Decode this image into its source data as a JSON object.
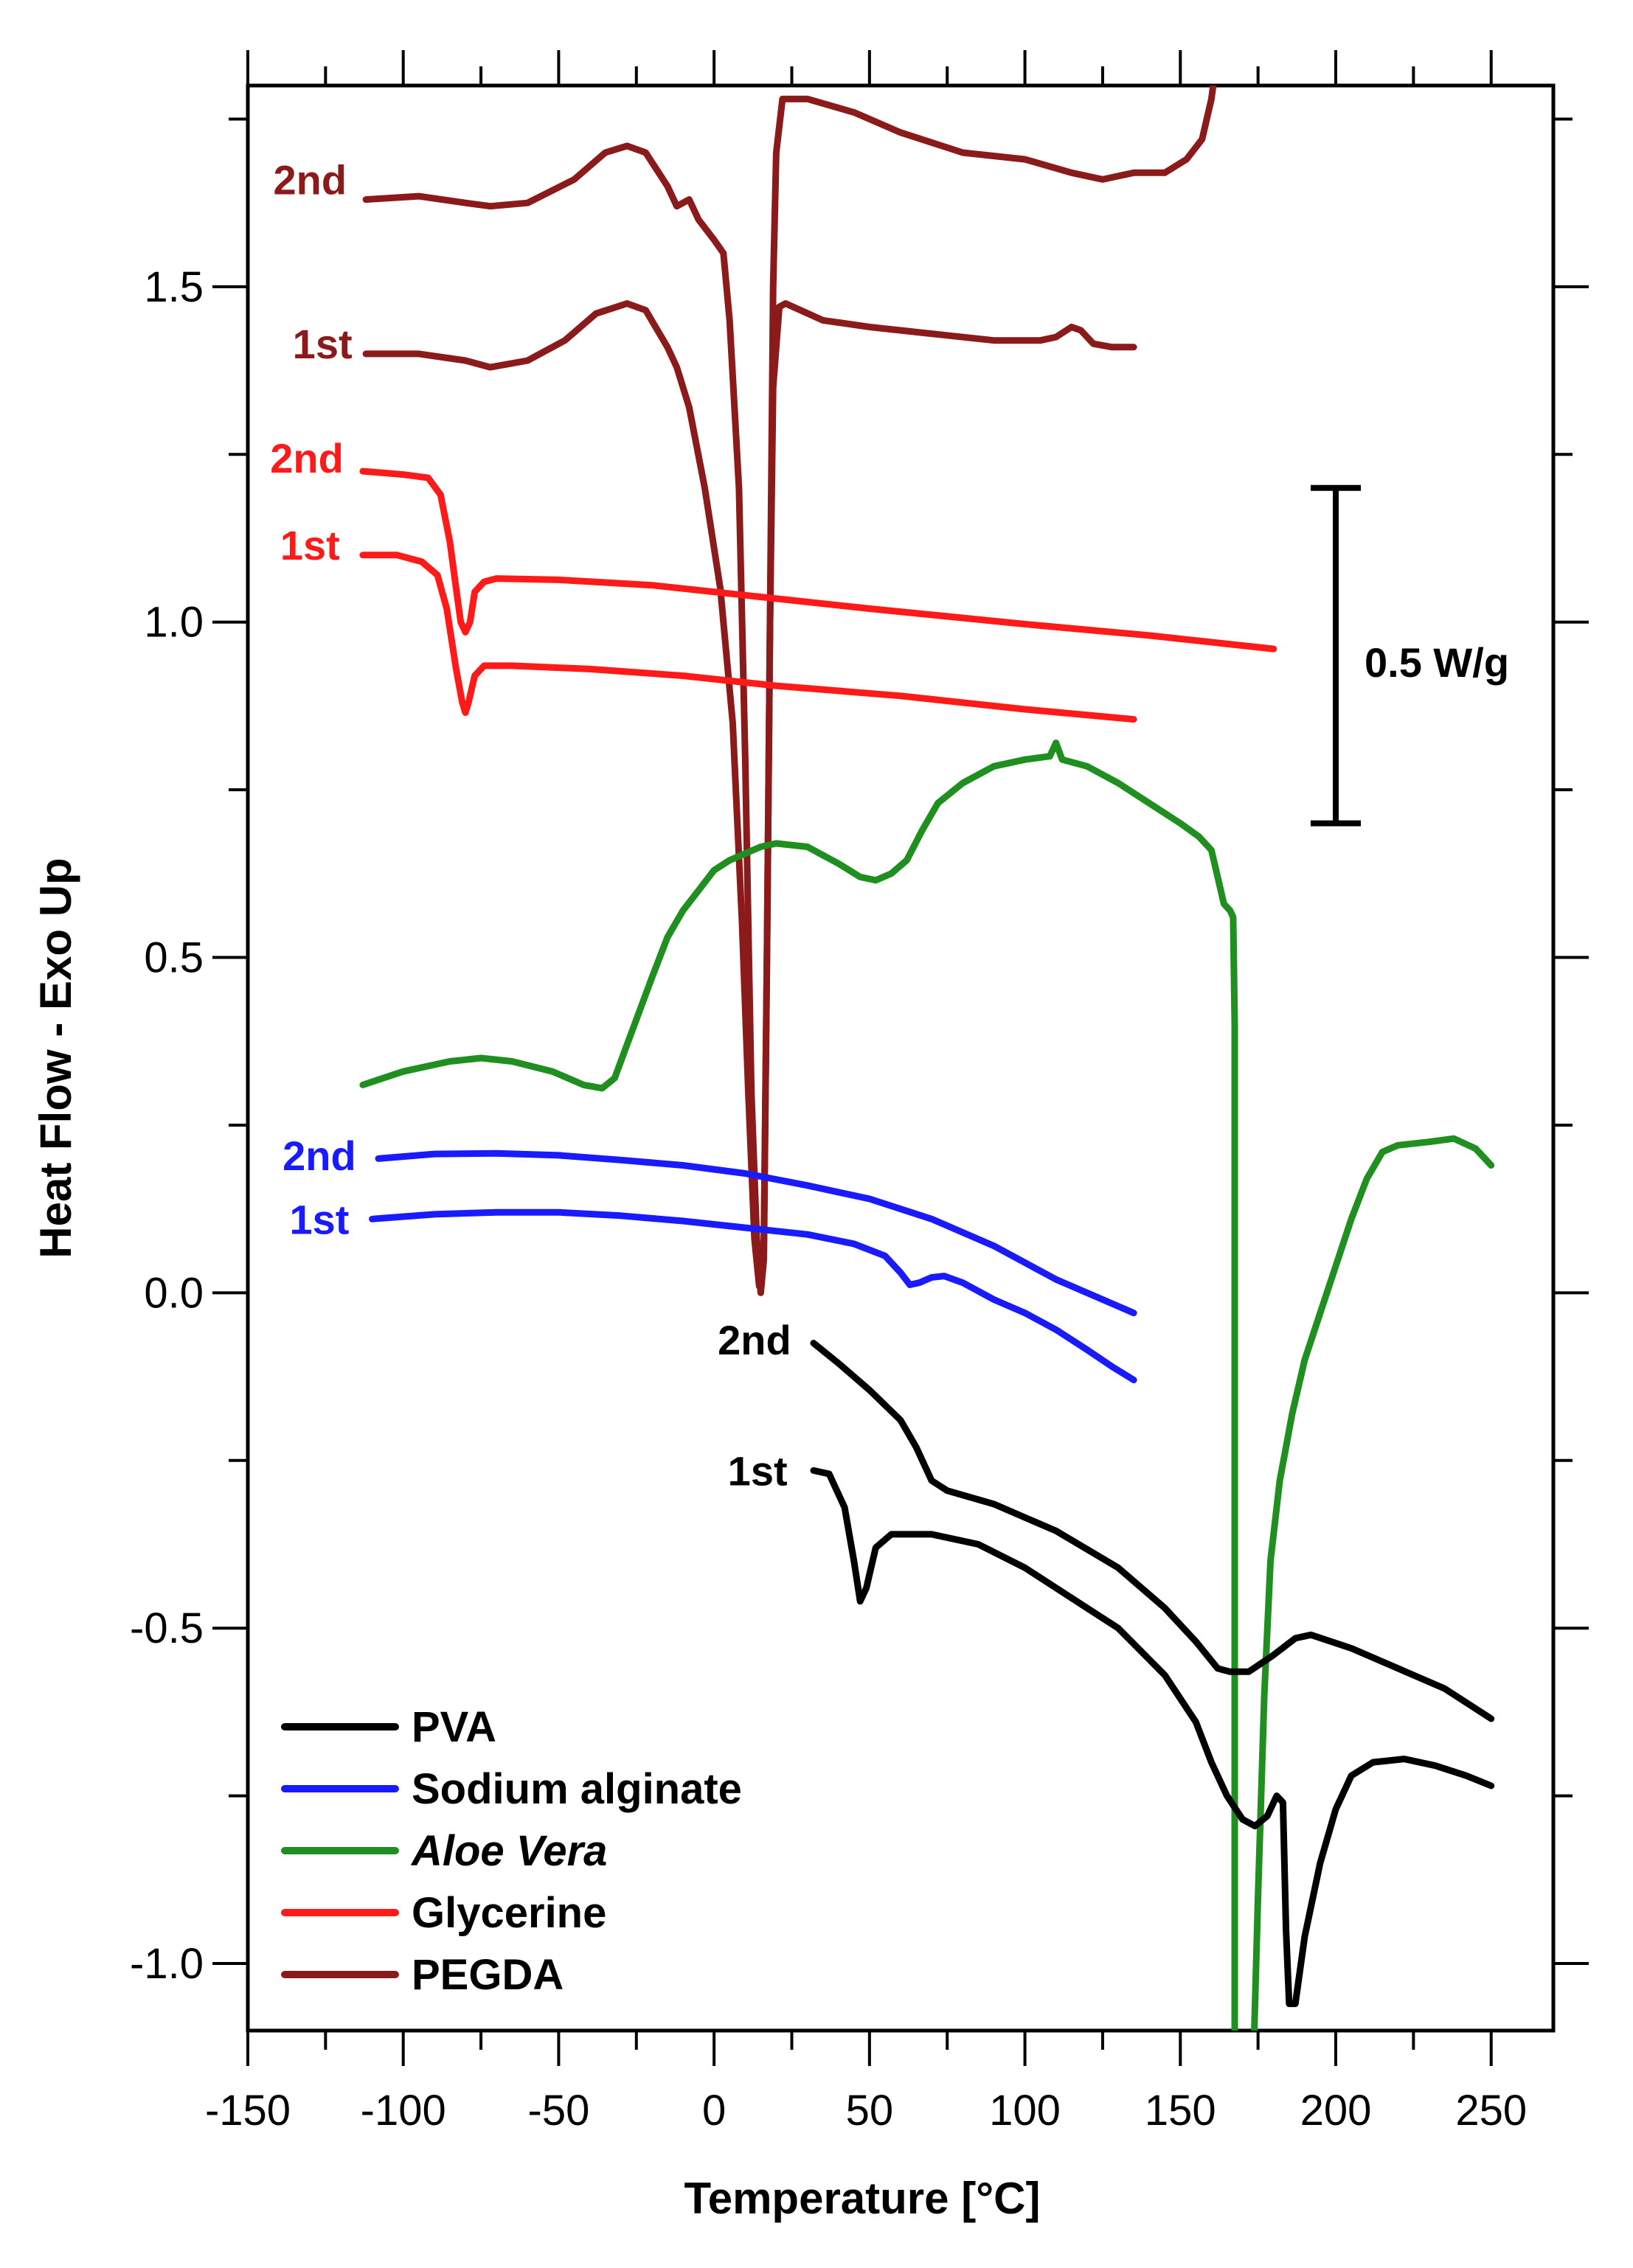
{
  "chart_data": {
    "type": "line",
    "title": "",
    "xlabel": "Temperature [°C]",
    "ylabel": "Heat Flow - Exo Up",
    "xlim": [
      -150,
      270
    ],
    "ylim": [
      -1.1,
      1.8
    ],
    "xticks": [
      -150,
      -100,
      -50,
      0,
      50,
      100,
      150,
      200,
      250
    ],
    "xtick_labels": [
      "-150",
      "-100",
      "-50",
      "0",
      "50",
      "100",
      "150",
      "200",
      "250"
    ],
    "yticks": [
      -1.0,
      -0.5,
      0.0,
      0.5,
      1.0,
      1.5
    ],
    "ytick_labels": [
      "-1.0",
      "-0.5",
      "0.0",
      "0.5",
      "1.0",
      "1.5"
    ],
    "grid": false,
    "legend_position": "bottom-left",
    "legend": [
      {
        "name": "PVA",
        "color": "#000000",
        "italic": false
      },
      {
        "name": "Sodium alginate",
        "color": "#1a1aff",
        "italic": false
      },
      {
        "name": "Aloe Vera",
        "color": "#1f8f1f",
        "italic": true
      },
      {
        "name": "Glycerine",
        "color": "#ff1a1a",
        "italic": false
      },
      {
        "name": "PEGDA",
        "color": "#8b1a1a",
        "italic": false
      }
    ],
    "scale_bar": {
      "label": "0.5 W/g",
      "y_from": 0.7,
      "y_to": 1.2,
      "x": 200
    },
    "series": [
      {
        "name": "PEGDA 2nd",
        "label": "2nd",
        "label_x": -130,
        "label_y": 1.66,
        "color": "#8b1a1a",
        "points": [
          [
            -112,
            1.63
          ],
          [
            -95,
            1.635
          ],
          [
            -80,
            1.625
          ],
          [
            -72,
            1.62
          ],
          [
            -60,
            1.625
          ],
          [
            -45,
            1.66
          ],
          [
            -35,
            1.7
          ],
          [
            -28,
            1.71
          ],
          [
            -22,
            1.7
          ],
          [
            -15,
            1.65
          ],
          [
            -12,
            1.62
          ],
          [
            -8,
            1.63
          ],
          [
            -5,
            1.6
          ],
          [
            0,
            1.57
          ],
          [
            3,
            1.55
          ],
          [
            5,
            1.45
          ],
          [
            8,
            1.2
          ],
          [
            10,
            0.8
          ],
          [
            12,
            0.3
          ],
          [
            14,
            0.05
          ],
          [
            15,
            0.0
          ],
          [
            16,
            0.05
          ],
          [
            17,
            0.5
          ],
          [
            18,
            1.0
          ],
          [
            19,
            1.5
          ],
          [
            20,
            1.7
          ],
          [
            22,
            1.78
          ],
          [
            30,
            1.78
          ],
          [
            45,
            1.76
          ],
          [
            60,
            1.73
          ],
          [
            80,
            1.7
          ],
          [
            100,
            1.69
          ],
          [
            115,
            1.67
          ],
          [
            125,
            1.66
          ],
          [
            135,
            1.67
          ],
          [
            145,
            1.67
          ],
          [
            152,
            1.69
          ],
          [
            157,
            1.72
          ],
          [
            160,
            1.78
          ],
          [
            162,
            1.85
          ]
        ]
      },
      {
        "name": "PEGDA 1st",
        "label": "1st",
        "label_x": -126,
        "label_y": 1.415,
        "color": "#8b1a1a",
        "points": [
          [
            -112,
            1.4
          ],
          [
            -95,
            1.4
          ],
          [
            -80,
            1.39
          ],
          [
            -72,
            1.38
          ],
          [
            -60,
            1.39
          ],
          [
            -48,
            1.42
          ],
          [
            -38,
            1.46
          ],
          [
            -28,
            1.475
          ],
          [
            -22,
            1.465
          ],
          [
            -15,
            1.41
          ],
          [
            -12,
            1.38
          ],
          [
            -8,
            1.32
          ],
          [
            -3,
            1.2
          ],
          [
            2,
            1.05
          ],
          [
            6,
            0.85
          ],
          [
            9,
            0.55
          ],
          [
            11,
            0.3
          ],
          [
            13,
            0.08
          ],
          [
            14.5,
            0.01
          ],
          [
            16,
            0.08
          ],
          [
            17,
            0.5
          ],
          [
            18,
            1.0
          ],
          [
            19,
            1.35
          ],
          [
            21,
            1.47
          ],
          [
            23,
            1.475
          ],
          [
            35,
            1.45
          ],
          [
            50,
            1.44
          ],
          [
            70,
            1.43
          ],
          [
            90,
            1.42
          ],
          [
            105,
            1.42
          ],
          [
            110,
            1.425
          ],
          [
            115,
            1.44
          ],
          [
            118,
            1.435
          ],
          [
            122,
            1.415
          ],
          [
            128,
            1.41
          ],
          [
            135,
            1.41
          ]
        ]
      },
      {
        "name": "Glycerine 2nd",
        "label": "2nd",
        "label_x": -131,
        "label_y": 1.245,
        "color": "#ff1a1a",
        "points": [
          [
            -113,
            1.225
          ],
          [
            -100,
            1.22
          ],
          [
            -92,
            1.215
          ],
          [
            -88,
            1.19
          ],
          [
            -85,
            1.12
          ],
          [
            -83,
            1.05
          ],
          [
            -81.5,
            1.0
          ],
          [
            -80,
            0.985
          ],
          [
            -78.5,
            1.0
          ],
          [
            -77,
            1.045
          ],
          [
            -74,
            1.06
          ],
          [
            -70,
            1.065
          ],
          [
            -50,
            1.063
          ],
          [
            -20,
            1.055
          ],
          [
            10,
            1.04
          ],
          [
            50,
            1.02
          ],
          [
            100,
            0.997
          ],
          [
            140,
            0.98
          ],
          [
            180,
            0.96
          ]
        ]
      },
      {
        "name": "Glycerine 1st",
        "label": "1st",
        "label_x": -130,
        "label_y": 1.115,
        "color": "#ff1a1a",
        "points": [
          [
            -113,
            1.1
          ],
          [
            -102,
            1.1
          ],
          [
            -94,
            1.09
          ],
          [
            -89,
            1.07
          ],
          [
            -86,
            1.02
          ],
          [
            -83,
            0.93
          ],
          [
            -81,
            0.88
          ],
          [
            -80,
            0.865
          ],
          [
            -79,
            0.88
          ],
          [
            -77,
            0.92
          ],
          [
            -74,
            0.935
          ],
          [
            -65,
            0.935
          ],
          [
            -40,
            0.93
          ],
          [
            -10,
            0.92
          ],
          [
            20,
            0.905
          ],
          [
            60,
            0.89
          ],
          [
            100,
            0.87
          ],
          [
            135,
            0.855
          ]
        ]
      },
      {
        "name": "Aloe Vera",
        "label": "",
        "label_x": 0,
        "label_y": 0,
        "color": "#1f8f1f",
        "points": [
          [
            -113,
            0.31
          ],
          [
            -100,
            0.33
          ],
          [
            -85,
            0.345
          ],
          [
            -75,
            0.35
          ],
          [
            -65,
            0.345
          ],
          [
            -52,
            0.33
          ],
          [
            -42,
            0.31
          ],
          [
            -36,
            0.305
          ],
          [
            -32,
            0.32
          ],
          [
            -28,
            0.37
          ],
          [
            -24,
            0.42
          ],
          [
            -20,
            0.47
          ],
          [
            -15,
            0.53
          ],
          [
            -10,
            0.57
          ],
          [
            -5,
            0.6
          ],
          [
            0,
            0.63
          ],
          [
            5,
            0.645
          ],
          [
            10,
            0.655
          ],
          [
            15,
            0.665
          ],
          [
            20,
            0.67
          ],
          [
            30,
            0.665
          ],
          [
            40,
            0.64
          ],
          [
            47,
            0.62
          ],
          [
            52,
            0.615
          ],
          [
            57,
            0.625
          ],
          [
            62,
            0.645
          ],
          [
            67,
            0.69
          ],
          [
            72,
            0.73
          ],
          [
            80,
            0.76
          ],
          [
            90,
            0.785
          ],
          [
            100,
            0.795
          ],
          [
            108,
            0.8
          ],
          [
            110,
            0.82
          ],
          [
            112,
            0.795
          ],
          [
            120,
            0.785
          ],
          [
            130,
            0.76
          ],
          [
            140,
            0.73
          ],
          [
            150,
            0.7
          ],
          [
            156,
            0.68
          ],
          [
            160,
            0.66
          ],
          [
            162,
            0.62
          ],
          [
            164,
            0.58
          ],
          [
            166,
            0.57
          ],
          [
            167,
            0.56
          ],
          [
            167.5,
            0.4
          ],
          [
            167.5,
            -1.15
          ]
        ]
      },
      {
        "name": "Aloe Vera tail",
        "label": "",
        "label_x": 0,
        "label_y": 0,
        "color": "#1f8f1f",
        "points": [
          [
            173.5,
            -1.15
          ],
          [
            175,
            -0.9
          ],
          [
            177,
            -0.6
          ],
          [
            179,
            -0.4
          ],
          [
            182,
            -0.28
          ],
          [
            186,
            -0.18
          ],
          [
            190,
            -0.1
          ],
          [
            195,
            -0.03
          ],
          [
            200,
            0.04
          ],
          [
            205,
            0.11
          ],
          [
            210,
            0.17
          ],
          [
            215,
            0.21
          ],
          [
            220,
            0.22
          ],
          [
            230,
            0.225
          ],
          [
            238,
            0.23
          ],
          [
            245,
            0.215
          ],
          [
            250,
            0.19
          ]
        ]
      },
      {
        "name": "Sodium alginate 2nd",
        "label": "2nd",
        "label_x": -127,
        "label_y": 0.205,
        "color": "#1a1aff",
        "points": [
          [
            -108,
            0.2
          ],
          [
            -90,
            0.207
          ],
          [
            -70,
            0.208
          ],
          [
            -50,
            0.205
          ],
          [
            -30,
            0.198
          ],
          [
            -10,
            0.19
          ],
          [
            10,
            0.178
          ],
          [
            30,
            0.16
          ],
          [
            50,
            0.14
          ],
          [
            70,
            0.11
          ],
          [
            90,
            0.07
          ],
          [
            110,
            0.02
          ],
          [
            125,
            -0.01
          ],
          [
            135,
            -0.03
          ]
        ]
      },
      {
        "name": "Sodium alginate 1st",
        "label": "1st",
        "label_x": -127,
        "label_y": 0.11,
        "color": "#1a1aff",
        "points": [
          [
            -110,
            0.11
          ],
          [
            -90,
            0.117
          ],
          [
            -70,
            0.12
          ],
          [
            -50,
            0.12
          ],
          [
            -30,
            0.115
          ],
          [
            -10,
            0.107
          ],
          [
            10,
            0.097
          ],
          [
            30,
            0.087
          ],
          [
            45,
            0.073
          ],
          [
            55,
            0.055
          ],
          [
            60,
            0.03
          ],
          [
            63,
            0.012
          ],
          [
            66,
            0.015
          ],
          [
            70,
            0.023
          ],
          [
            74,
            0.025
          ],
          [
            80,
            0.015
          ],
          [
            90,
            -0.01
          ],
          [
            100,
            -0.03
          ],
          [
            110,
            -0.055
          ],
          [
            120,
            -0.085
          ],
          [
            128,
            -0.11
          ],
          [
            135,
            -0.13
          ]
        ]
      },
      {
        "name": "PVA 2nd",
        "label": "2nd",
        "label_x": 13,
        "label_y": -0.07,
        "color": "#000000",
        "points": [
          [
            32,
            -0.075
          ],
          [
            40,
            -0.105
          ],
          [
            50,
            -0.145
          ],
          [
            60,
            -0.19
          ],
          [
            65,
            -0.23
          ],
          [
            70,
            -0.28
          ],
          [
            75,
            -0.295
          ],
          [
            90,
            -0.315
          ],
          [
            110,
            -0.355
          ],
          [
            130,
            -0.41
          ],
          [
            145,
            -0.47
          ],
          [
            155,
            -0.52
          ],
          [
            162,
            -0.56
          ],
          [
            166,
            -0.565
          ],
          [
            172,
            -0.565
          ],
          [
            180,
            -0.54
          ],
          [
            187,
            -0.515
          ],
          [
            192,
            -0.51
          ],
          [
            205,
            -0.53
          ],
          [
            220,
            -0.56
          ],
          [
            235,
            -0.59
          ],
          [
            250,
            -0.635
          ]
        ]
      },
      {
        "name": "PVA 1st",
        "label": "1st",
        "label_x": 14,
        "label_y": -0.265,
        "color": "#000000",
        "points": [
          [
            32,
            -0.265
          ],
          [
            37,
            -0.27
          ],
          [
            42,
            -0.32
          ],
          [
            45,
            -0.4
          ],
          [
            47,
            -0.46
          ],
          [
            49,
            -0.44
          ],
          [
            52,
            -0.38
          ],
          [
            57,
            -0.36
          ],
          [
            70,
            -0.36
          ],
          [
            85,
            -0.375
          ],
          [
            100,
            -0.41
          ],
          [
            115,
            -0.455
          ],
          [
            130,
            -0.5
          ],
          [
            145,
            -0.57
          ],
          [
            155,
            -0.64
          ],
          [
            160,
            -0.7
          ],
          [
            165,
            -0.75
          ],
          [
            170,
            -0.785
          ],
          [
            174,
            -0.795
          ],
          [
            178,
            -0.78
          ],
          [
            181,
            -0.75
          ],
          [
            183,
            -0.76
          ],
          [
            184,
            -0.95
          ],
          [
            185,
            -1.06
          ],
          [
            187,
            -1.06
          ],
          [
            190,
            -0.96
          ],
          [
            195,
            -0.85
          ],
          [
            200,
            -0.77
          ],
          [
            205,
            -0.72
          ],
          [
            212,
            -0.7
          ],
          [
            222,
            -0.695
          ],
          [
            232,
            -0.705
          ],
          [
            242,
            -0.72
          ],
          [
            250,
            -0.735
          ]
        ]
      }
    ]
  }
}
